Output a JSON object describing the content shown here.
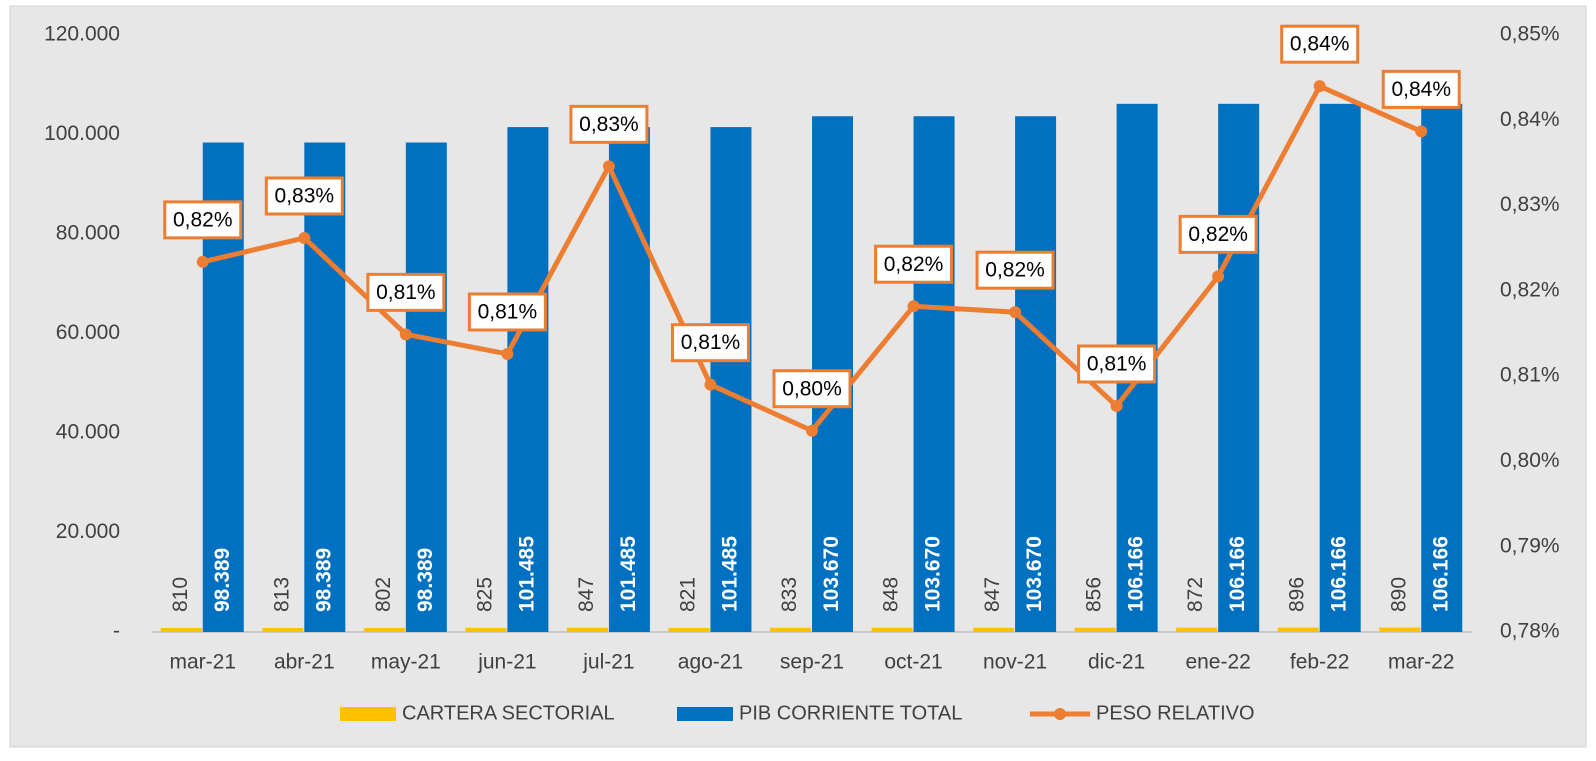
{
  "chart_data": {
    "type": "bar-line",
    "categories": [
      "mar-21",
      "abr-21",
      "may-21",
      "jun-21",
      "jul-21",
      "ago-21",
      "sep-21",
      "oct-21",
      "nov-21",
      "dic-21",
      "ene-22",
      "feb-22",
      "mar-22"
    ],
    "series": [
      {
        "name": "CARTERA SECTORIAL",
        "color": "#ffc000",
        "type": "bar",
        "values": [
          810,
          813,
          802,
          825,
          847,
          821,
          833,
          848,
          847,
          856,
          872,
          896,
          890
        ]
      },
      {
        "name": "PIB CORRIENTE TOTAL",
        "color": "#0070c0",
        "type": "bar",
        "values": [
          98389,
          98389,
          98389,
          101485,
          101485,
          101485,
          103670,
          103670,
          103670,
          106166,
          106166,
          106166,
          106166
        ],
        "value_labels": [
          "98.389",
          "98.389",
          "98.389",
          "101.485",
          "101.485",
          "101.485",
          "103.670",
          "103.670",
          "103.670",
          "106.166",
          "106.166",
          "106.166",
          "106.166"
        ]
      },
      {
        "name": "PESO RELATIVO",
        "color": "#ed7d31",
        "type": "line",
        "axis": "y2",
        "values": [
          0.8234,
          0.8262,
          0.8149,
          0.8126,
          0.8346,
          0.809,
          0.8036,
          0.8182,
          0.8175,
          0.8065,
          0.8217,
          0.844,
          0.8387
        ],
        "value_labels": [
          "0,82%",
          "0,83%",
          "0,81%",
          "0,81%",
          "0,83%",
          "0,81%",
          "0,80%",
          "0,82%",
          "0,82%",
          "0,81%",
          "0,82%",
          "0,84%",
          "0,84%"
        ]
      }
    ],
    "ylim": [
      0,
      120000
    ],
    "yticks": [
      {
        "value": 0,
        "label": "-"
      },
      {
        "value": 20000,
        "label": "20.000"
      },
      {
        "value": 40000,
        "label": "40.000"
      },
      {
        "value": 60000,
        "label": "60.000"
      },
      {
        "value": 80000,
        "label": "80.000"
      },
      {
        "value": 100000,
        "label": "100.000"
      },
      {
        "value": 120000,
        "label": "120.000"
      }
    ],
    "y2lim": [
      0.78,
      0.85
    ],
    "y2ticks": [
      {
        "value": 0.78,
        "label": "0,78%"
      },
      {
        "value": 0.79,
        "label": "0,79%"
      },
      {
        "value": 0.8,
        "label": "0,80%"
      },
      {
        "value": 0.81,
        "label": "0,81%"
      },
      {
        "value": 0.82,
        "label": "0,82%"
      },
      {
        "value": 0.83,
        "label": "0,83%"
      },
      {
        "value": 0.84,
        "label": "0,84%"
      },
      {
        "value": 0.85,
        "label": "0,85%"
      }
    ],
    "legend": "bottom"
  }
}
